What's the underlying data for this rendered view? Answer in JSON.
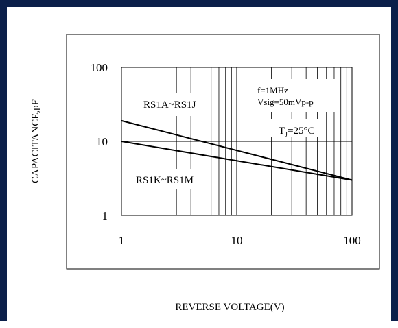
{
  "chart_data": {
    "type": "line",
    "xlabel": "REVERSE VOLTAGE(V)",
    "ylabel": "CAPACITANCE,pF",
    "x_scale": "log",
    "y_scale": "log",
    "xlim": [
      1,
      100
    ],
    "ylim": [
      1,
      100
    ],
    "x_ticks": [
      "1",
      "10",
      "100"
    ],
    "y_ticks": [
      "100",
      "10",
      "1"
    ],
    "x_tick_values": [
      1,
      10,
      100
    ],
    "y_tick_values": [
      100,
      10,
      1
    ],
    "grid": true,
    "series": [
      {
        "name": "RS1A~RS1J",
        "x": [
          1,
          100
        ],
        "y": [
          19,
          3
        ]
      },
      {
        "name": "RS1K~RS1M",
        "x": [
          1,
          100
        ],
        "y": [
          10,
          3
        ]
      }
    ],
    "annotations": [
      {
        "text": "f=1MHz"
      },
      {
        "text": "Vsig=50mVp-p"
      }
    ],
    "tj": {
      "prefix": "T",
      "sub": "J",
      "suffix": "=25°C"
    }
  },
  "colors": {
    "frame": "#0b1f4a",
    "line": "#000000",
    "grid": "#000000"
  }
}
